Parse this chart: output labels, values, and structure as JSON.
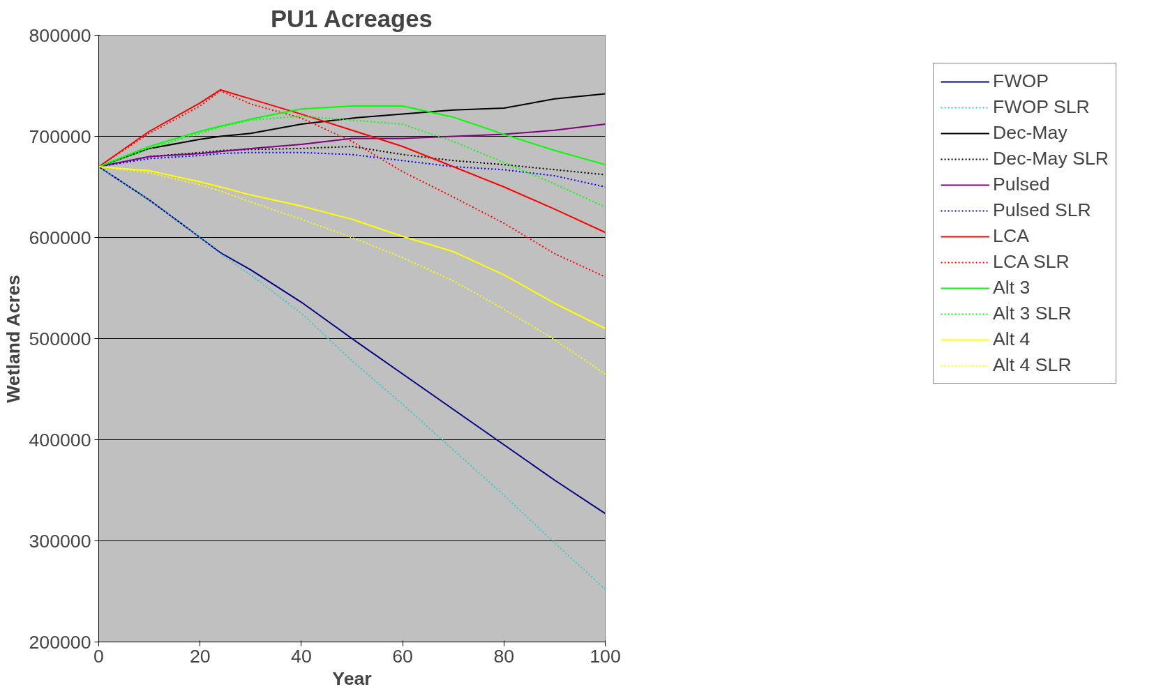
{
  "chart_data": {
    "type": "line",
    "title": "PU1 Acreages",
    "xlabel": "Year",
    "ylabel": "Wetland Acres",
    "x": [
      0,
      10,
      20,
      24,
      30,
      40,
      50,
      60,
      70,
      80,
      90,
      100
    ],
    "xlim": [
      0,
      100
    ],
    "xticks": [
      0,
      20,
      40,
      60,
      80,
      100
    ],
    "ylim": [
      200000,
      800000
    ],
    "yticks": [
      200000,
      300000,
      400000,
      500000,
      600000,
      700000,
      800000
    ],
    "grid": "y",
    "legend": "right",
    "marker": "none",
    "series": [
      {
        "name": "FWOP",
        "color": "#000080",
        "line_style": "solid",
        "values": [
          670000,
          637000,
          600000,
          585000,
          568000,
          536000,
          500000,
          465000,
          430000,
          395000,
          360000,
          327000
        ]
      },
      {
        "name": "FWOP SLR",
        "color": "#33cccc",
        "line_style": "dotted",
        "values": [
          670000,
          637000,
          600000,
          584000,
          563000,
          525000,
          478000,
          435000,
          390000,
          345000,
          298000,
          252000
        ]
      },
      {
        "name": "Dec-May",
        "color": "#000000",
        "line_style": "solid",
        "values": [
          670000,
          688000,
          697000,
          700000,
          703000,
          712000,
          718000,
          722000,
          726000,
          728000,
          737000,
          742000
        ]
      },
      {
        "name": "Dec-May SLR",
        "color": "#000000",
        "line_style": "dotted",
        "values": [
          670000,
          680000,
          684000,
          686000,
          687000,
          688000,
          690000,
          682000,
          676000,
          672000,
          667000,
          662000
        ]
      },
      {
        "name": "Pulsed",
        "color": "#800080",
        "line_style": "solid",
        "values": [
          670000,
          680000,
          683000,
          685000,
          688000,
          692000,
          698000,
          698000,
          700000,
          702000,
          706000,
          712000
        ]
      },
      {
        "name": "Pulsed SLR",
        "color": "#0000ff",
        "line_style": "dotted",
        "values": [
          670000,
          678000,
          681000,
          683000,
          684000,
          684000,
          682000,
          676000,
          670000,
          667000,
          661000,
          650000
        ]
      },
      {
        "name": "LCA",
        "color": "#ff0000",
        "line_style": "solid",
        "values": [
          670000,
          705000,
          733000,
          746000,
          737000,
          722000,
          706000,
          690000,
          670000,
          650000,
          628000,
          605000
        ]
      },
      {
        "name": "LCA SLR",
        "color": "#ff0000",
        "line_style": "dotted",
        "values": [
          670000,
          703000,
          730000,
          745000,
          732000,
          718000,
          695000,
          665000,
          640000,
          614000,
          584000,
          561000
        ]
      },
      {
        "name": "Alt 3",
        "color": "#00ff00",
        "line_style": "solid",
        "values": [
          670000,
          690000,
          705000,
          710000,
          717000,
          727000,
          730000,
          730000,
          719000,
          702000,
          686000,
          672000
        ]
      },
      {
        "name": "Alt 3 SLR",
        "color": "#00ff00",
        "line_style": "dotted",
        "values": [
          670000,
          688000,
          703000,
          709000,
          716000,
          720000,
          716000,
          712000,
          695000,
          674000,
          653000,
          630000
        ]
      },
      {
        "name": "Alt 4",
        "color": "#ffff00",
        "line_style": "solid",
        "values": [
          670000,
          666000,
          655000,
          650000,
          642000,
          631000,
          618000,
          601000,
          586000,
          563000,
          535000,
          510000
        ]
      },
      {
        "name": "Alt 4 SLR",
        "color": "#ffff00",
        "line_style": "dotted",
        "values": [
          670000,
          664000,
          652000,
          646000,
          635000,
          618000,
          600000,
          580000,
          557000,
          529000,
          499000,
          465000
        ]
      }
    ]
  }
}
